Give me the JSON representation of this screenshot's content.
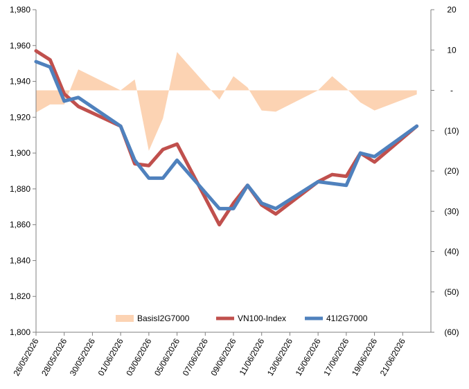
{
  "chart_data": {
    "type": "line",
    "title": "",
    "x": [
      "26/05/2026",
      "27/05/2026",
      "28/05/2026",
      "29/05/2026",
      "01/06/2026",
      "02/06/2026",
      "03/06/2026",
      "04/06/2026",
      "05/06/2026",
      "08/06/2026",
      "09/06/2026",
      "10/06/2026",
      "11/06/2026",
      "12/06/2026",
      "15/06/2026",
      "16/06/2026",
      "17/06/2026",
      "18/06/2026",
      "19/06/2026",
      "22/06/2026"
    ],
    "x_dates": [
      "2026-05-26",
      "2026-05-27",
      "2026-05-28",
      "2026-05-29",
      "2026-06-01",
      "2026-06-02",
      "2026-06-03",
      "2026-06-04",
      "2026-06-05",
      "2026-06-08",
      "2026-06-09",
      "2026-06-10",
      "2026-06-11",
      "2026-06-12",
      "2026-06-15",
      "2026-06-16",
      "2026-06-17",
      "2026-06-18",
      "2026-06-19",
      "2026-06-22"
    ],
    "x_ticks": [
      "26/05/2026",
      "28/05/2026",
      "30/05/2026",
      "01/06/2026",
      "03/06/2026",
      "05/06/2026",
      "07/06/2026",
      "09/06/2026",
      "11/06/2026",
      "13/06/2026",
      "15/06/2026",
      "17/06/2026",
      "19/06/2026",
      "21/06/2026"
    ],
    "x_tick_dates": [
      "2026-05-26",
      "2026-05-28",
      "2026-05-30",
      "2026-06-01",
      "2026-06-03",
      "2026-06-05",
      "2026-06-07",
      "2026-06-09",
      "2026-06-11",
      "2026-06-13",
      "2026-06-15",
      "2026-06-17",
      "2026-06-19",
      "2026-06-21"
    ],
    "x_range": [
      "2026-05-26",
      "2026-06-23"
    ],
    "y_left": {
      "min": 1800,
      "max": 1980,
      "step": 20,
      "tick_labels": [
        "1,800",
        "1,820",
        "1,840",
        "1,860",
        "1,880",
        "1,900",
        "1,920",
        "1,940",
        "1,960",
        "1,980"
      ]
    },
    "y_right": {
      "min": -60,
      "max": 20,
      "step": 10,
      "tick_labels": [
        "(60)",
        "(50)",
        "(40)",
        "(30)",
        "(20)",
        "(10)",
        "-",
        "10",
        "20"
      ]
    },
    "series": [
      {
        "name": "BasisI2G7000",
        "kind": "area",
        "axis": "right",
        "color": "#fcd3b3",
        "values": [
          -5.5,
          -3.5,
          -3.5,
          5.2,
          0,
          2.7,
          -15,
          -7,
          9.5,
          -2.3,
          3.5,
          0.7,
          -5,
          -5.3,
          0,
          3.5,
          0.5,
          -3,
          -5,
          -1
        ]
      },
      {
        "name": "VN100-Index",
        "kind": "line",
        "axis": "left",
        "color": "#c0504d",
        "values": [
          1957,
          1952,
          1933,
          1926,
          1915,
          1894,
          1893,
          1902,
          1905,
          1860,
          1872,
          1882,
          1871,
          1866,
          1884,
          1888,
          1887,
          1900,
          1895,
          1915
        ]
      },
      {
        "name": "41I2G7000",
        "kind": "line",
        "axis": "left",
        "color": "#4f81bd",
        "values": [
          1951,
          1948,
          1929,
          1931,
          1915,
          1896,
          1886,
          1886,
          1896,
          1869,
          1869,
          1882,
          1872,
          1869,
          1884,
          1883,
          1882,
          1900,
          1898,
          1915
        ]
      }
    ],
    "legend": {
      "position": "bottom-inside",
      "entries": [
        "BasisI2G7000",
        "VN100-Index",
        "41I2G7000"
      ]
    },
    "grid": false
  }
}
